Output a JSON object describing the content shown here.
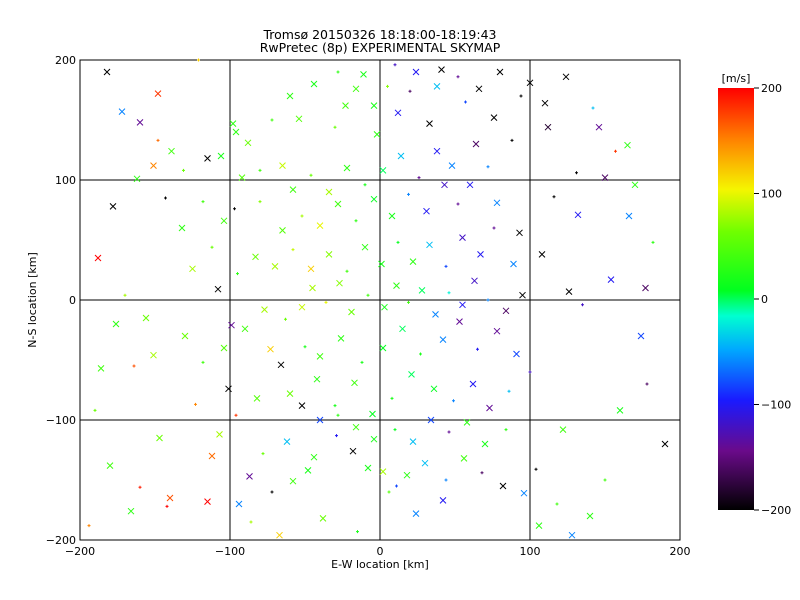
{
  "chart_data": {
    "type": "scatter",
    "title": "Tromsø 20150326 18:18:00-18:19:43",
    "subtitle": "RwPretec (8p) EXPERIMENTAL SKYMAP",
    "xlabel": "E-W location [km]",
    "ylabel": "N-S location [km]",
    "xlim": [
      -200,
      200
    ],
    "ylim": [
      -200,
      200
    ],
    "xticks": [
      -200,
      -100,
      0,
      100,
      200
    ],
    "yticks": [
      -200,
      -100,
      0,
      100,
      200
    ],
    "grid": true,
    "colorbar": {
      "label": "[m/s]",
      "min": -200,
      "max": 200,
      "ticks": [
        200,
        100,
        0,
        -100,
        -200
      ],
      "colormap": "black-purple-blue-cyan-green-yellow-red"
    },
    "markers": [
      "x",
      "+"
    ],
    "points": [
      [
        -182,
        190,
        -200
      ],
      [
        -148,
        172,
        180
      ],
      [
        -121,
        200,
        120
      ],
      [
        -172,
        157,
        -60
      ],
      [
        -160,
        148,
        -140
      ],
      [
        -148,
        133,
        160
      ],
      [
        -139,
        124,
        40
      ],
      [
        -151,
        112,
        150
      ],
      [
        -131,
        108,
        60
      ],
      [
        -115,
        118,
        -200
      ],
      [
        -162,
        101,
        30
      ],
      [
        -143,
        85,
        -200
      ],
      [
        -178,
        78,
        -200
      ],
      [
        -188,
        35,
        200
      ],
      [
        -170,
        4,
        80
      ],
      [
        -156,
        -15,
        60
      ],
      [
        -186,
        -57,
        40
      ],
      [
        -164,
        -55,
        170
      ],
      [
        -151,
        -46,
        80
      ],
      [
        -147,
        -115,
        60
      ],
      [
        -160,
        -156,
        190
      ],
      [
        -140,
        -165,
        170
      ],
      [
        -115,
        -168,
        200
      ],
      [
        -142,
        -172,
        200
      ],
      [
        -107,
        -112,
        80
      ],
      [
        -101,
        -74,
        -200
      ],
      [
        -123,
        -87,
        150
      ],
      [
        -99,
        -21,
        -140
      ],
      [
        -108,
        9,
        -200
      ],
      [
        -97,
        76,
        -200
      ],
      [
        -98,
        147,
        30
      ],
      [
        -88,
        131,
        60
      ],
      [
        -80,
        108,
        40
      ],
      [
        -65,
        112,
        90
      ],
      [
        -54,
        151,
        50
      ],
      [
        -30,
        144,
        60
      ],
      [
        -23,
        162,
        40
      ],
      [
        -11,
        188,
        20
      ],
      [
        5,
        178,
        70
      ],
      [
        -2,
        138,
        30
      ],
      [
        12,
        156,
        -100
      ],
      [
        20,
        174,
        -160
      ],
      [
        33,
        147,
        -200
      ],
      [
        41,
        192,
        -200
      ],
      [
        57,
        165,
        -80
      ],
      [
        64,
        130,
        -160
      ],
      [
        76,
        152,
        -200
      ],
      [
        88,
        133,
        -200
      ],
      [
        100,
        181,
        -200
      ],
      [
        112,
        144,
        -180
      ],
      [
        131,
        106,
        -200
      ],
      [
        146,
        144,
        -140
      ],
      [
        165,
        129,
        30
      ],
      [
        157,
        124,
        180
      ],
      [
        170,
        96,
        30
      ],
      [
        132,
        71,
        -100
      ],
      [
        116,
        86,
        -200
      ],
      [
        93,
        56,
        -200
      ],
      [
        78,
        81,
        -60
      ],
      [
        72,
        111,
        -60
      ],
      [
        108,
        38,
        -200
      ],
      [
        126,
        7,
        -200
      ],
      [
        135,
        -4,
        -120
      ],
      [
        154,
        17,
        -100
      ],
      [
        177,
        10,
        -160
      ],
      [
        178,
        -70,
        -160
      ],
      [
        190,
        -120,
        -200
      ],
      [
        122,
        -108,
        40
      ],
      [
        104,
        -141,
        -200
      ],
      [
        96,
        -161,
        -60
      ],
      [
        82,
        -155,
        -200
      ],
      [
        68,
        -144,
        -160
      ],
      [
        42,
        -167,
        -100
      ],
      [
        24,
        -178,
        -60
      ],
      [
        11,
        -155,
        -80
      ],
      [
        2,
        -143,
        80
      ],
      [
        -18,
        -126,
        -200
      ],
      [
        -29,
        -113,
        -100
      ],
      [
        -44,
        -131,
        30
      ],
      [
        -62,
        -118,
        -40
      ],
      [
        -78,
        -128,
        60
      ],
      [
        -87,
        -147,
        -140
      ],
      [
        -94,
        -170,
        -60
      ],
      [
        -72,
        -160,
        -200
      ],
      [
        -58,
        -151,
        40
      ],
      [
        -48,
        -142,
        20
      ],
      [
        -86,
        -185,
        80
      ],
      [
        -67,
        -196,
        120
      ],
      [
        -38,
        -182,
        60
      ],
      [
        -15,
        -193,
        20
      ],
      [
        -60,
        -78,
        60
      ],
      [
        -42,
        -66,
        30
      ],
      [
        -30,
        -88,
        20
      ],
      [
        -17,
        -69,
        40
      ],
      [
        -5,
        -95,
        10
      ],
      [
        8,
        -82,
        20
      ],
      [
        21,
        -62,
        0
      ],
      [
        36,
        -74,
        10
      ],
      [
        49,
        -84,
        -60
      ],
      [
        62,
        -70,
        -100
      ],
      [
        73,
        -90,
        -140
      ],
      [
        86,
        -76,
        -40
      ],
      [
        -73,
        -41,
        120
      ],
      [
        -66,
        -54,
        -200
      ],
      [
        -50,
        -39,
        20
      ],
      [
        -40,
        -47,
        40
      ],
      [
        -26,
        -32,
        30
      ],
      [
        -12,
        -52,
        20
      ],
      [
        2,
        -40,
        10
      ],
      [
        15,
        -24,
        0
      ],
      [
        27,
        -45,
        20
      ],
      [
        42,
        -33,
        -60
      ],
      [
        53,
        -18,
        -140
      ],
      [
        65,
        -41,
        -100
      ],
      [
        78,
        -26,
        -140
      ],
      [
        91,
        -45,
        -80
      ],
      [
        100,
        -60,
        -120
      ],
      [
        -90,
        -24,
        40
      ],
      [
        -77,
        -8,
        80
      ],
      [
        -63,
        -16,
        60
      ],
      [
        -52,
        -6,
        90
      ],
      [
        -45,
        10,
        80
      ],
      [
        -36,
        -2,
        100
      ],
      [
        -27,
        14,
        70
      ],
      [
        -19,
        -10,
        60
      ],
      [
        -8,
        4,
        40
      ],
      [
        3,
        -6,
        20
      ],
      [
        11,
        12,
        30
      ],
      [
        19,
        -2,
        40
      ],
      [
        28,
        8,
        0
      ],
      [
        37,
        -12,
        -60
      ],
      [
        46,
        6,
        -20
      ],
      [
        55,
        -4,
        -100
      ],
      [
        63,
        16,
        -120
      ],
      [
        72,
        0,
        -60
      ],
      [
        84,
        -9,
        -160
      ],
      [
        95,
        4,
        -200
      ],
      [
        -95,
        22,
        30
      ],
      [
        -83,
        36,
        60
      ],
      [
        -70,
        28,
        80
      ],
      [
        -58,
        42,
        90
      ],
      [
        -46,
        26,
        120
      ],
      [
        -34,
        38,
        70
      ],
      [
        -22,
        24,
        40
      ],
      [
        -10,
        44,
        30
      ],
      [
        1,
        30,
        20
      ],
      [
        12,
        48,
        10
      ],
      [
        22,
        32,
        30
      ],
      [
        33,
        46,
        -40
      ],
      [
        44,
        28,
        -80
      ],
      [
        55,
        52,
        -120
      ],
      [
        67,
        38,
        -100
      ],
      [
        76,
        60,
        -140
      ],
      [
        89,
        30,
        -60
      ],
      [
        -65,
        58,
        50
      ],
      [
        -52,
        70,
        80
      ],
      [
        -40,
        62,
        100
      ],
      [
        -28,
        80,
        40
      ],
      [
        -16,
        66,
        30
      ],
      [
        -4,
        84,
        10
      ],
      [
        8,
        70,
        20
      ],
      [
        19,
        88,
        -60
      ],
      [
        31,
        74,
        -100
      ],
      [
        43,
        96,
        -120
      ],
      [
        52,
        80,
        -140
      ],
      [
        60,
        96,
        -100
      ],
      [
        -58,
        92,
        40
      ],
      [
        -46,
        104,
        60
      ],
      [
        -34,
        90,
        80
      ],
      [
        -22,
        110,
        30
      ],
      [
        -10,
        96,
        20
      ],
      [
        2,
        108,
        0
      ],
      [
        14,
        120,
        -40
      ],
      [
        26,
        102,
        -140
      ],
      [
        38,
        124,
        -100
      ],
      [
        48,
        112,
        -60
      ],
      [
        -80,
        82,
        70
      ],
      [
        -92,
        102,
        50
      ],
      [
        -104,
        66,
        40
      ],
      [
        -112,
        44,
        60
      ],
      [
        -125,
        26,
        80
      ],
      [
        -130,
        -30,
        60
      ],
      [
        -118,
        -52,
        40
      ],
      [
        -104,
        -40,
        50
      ],
      [
        -112,
        -130,
        160
      ],
      [
        -96,
        -96,
        180
      ],
      [
        -82,
        -82,
        50
      ],
      [
        -132,
        60,
        30
      ],
      [
        -118,
        82,
        40
      ],
      [
        -106,
        120,
        20
      ],
      [
        -96,
        140,
        30
      ],
      [
        -72,
        150,
        40
      ],
      [
        -60,
        170,
        30
      ],
      [
        -44,
        180,
        20
      ],
      [
        -28,
        190,
        30
      ],
      [
        -16,
        176,
        40
      ],
      [
        -4,
        162,
        20
      ],
      [
        10,
        196,
        -120
      ],
      [
        24,
        190,
        -100
      ],
      [
        38,
        178,
        -40
      ],
      [
        52,
        186,
        -140
      ],
      [
        66,
        176,
        -200
      ],
      [
        80,
        190,
        -200
      ],
      [
        94,
        170,
        -200
      ],
      [
        110,
        164,
        -200
      ],
      [
        124,
        186,
        -200
      ],
      [
        142,
        160,
        -40
      ],
      [
        150,
        102,
        -160
      ],
      [
        166,
        70,
        -60
      ],
      [
        182,
        48,
        30
      ],
      [
        174,
        -30,
        -80
      ],
      [
        160,
        -92,
        20
      ],
      [
        150,
        -150,
        40
      ],
      [
        140,
        -180,
        30
      ],
      [
        128,
        -196,
        -60
      ],
      [
        118,
        -170,
        40
      ],
      [
        106,
        -188,
        30
      ],
      [
        -176,
        -20,
        30
      ],
      [
        -190,
        -92,
        60
      ],
      [
        -180,
        -138,
        40
      ],
      [
        -166,
        -176,
        30
      ],
      [
        -194,
        -188,
        150
      ],
      [
        -52,
        -88,
        -200
      ],
      [
        -40,
        -100,
        -80
      ],
      [
        -28,
        -96,
        30
      ],
      [
        -16,
        -106,
        40
      ],
      [
        -4,
        -116,
        20
      ],
      [
        10,
        -108,
        10
      ],
      [
        22,
        -118,
        -40
      ],
      [
        34,
        -100,
        -80
      ],
      [
        46,
        -110,
        -140
      ],
      [
        58,
        -102,
        30
      ],
      [
        -8,
        -140,
        20
      ],
      [
        6,
        -160,
        50
      ],
      [
        18,
        -146,
        30
      ],
      [
        30,
        -136,
        -40
      ],
      [
        44,
        -150,
        -60
      ],
      [
        56,
        -132,
        40
      ],
      [
        70,
        -120,
        20
      ],
      [
        84,
        -108,
        30
      ]
    ]
  }
}
